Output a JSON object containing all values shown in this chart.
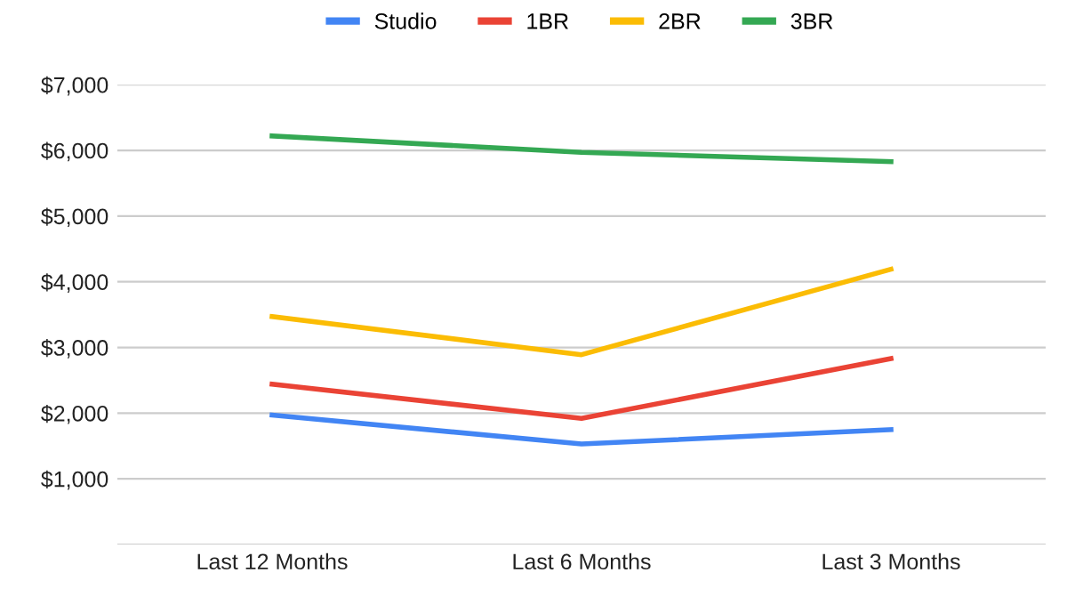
{
  "chart_data": {
    "type": "line",
    "categories": [
      "Last 12 Months",
      "Last 6 Months",
      "Last 3 Months"
    ],
    "series": [
      {
        "name": "Studio",
        "color": "#4285f4",
        "values": [
          1970,
          1530,
          1750
        ]
      },
      {
        "name": "1BR",
        "color": "#ea4335",
        "values": [
          2440,
          1920,
          2830
        ]
      },
      {
        "name": "2BR",
        "color": "#fbbc04",
        "values": [
          3470,
          2890,
          4190
        ]
      },
      {
        "name": "3BR",
        "color": "#34a853",
        "values": [
          6220,
          5970,
          5830
        ]
      }
    ],
    "ylim": [
      0,
      7000
    ],
    "yticks": [
      {
        "value": 0,
        "label": null
      },
      {
        "value": 1000,
        "label": "$1,000"
      },
      {
        "value": 2000,
        "label": "$2,000"
      },
      {
        "value": 3000,
        "label": "$3,000"
      },
      {
        "value": 4000,
        "label": "$4,000"
      },
      {
        "value": 5000,
        "label": "$5,000"
      },
      {
        "value": 6000,
        "label": "$6,000"
      },
      {
        "value": 7000,
        "label": "$7,000"
      }
    ],
    "grid": "y",
    "legend": "top",
    "marker": "none",
    "line_style": "solid"
  }
}
